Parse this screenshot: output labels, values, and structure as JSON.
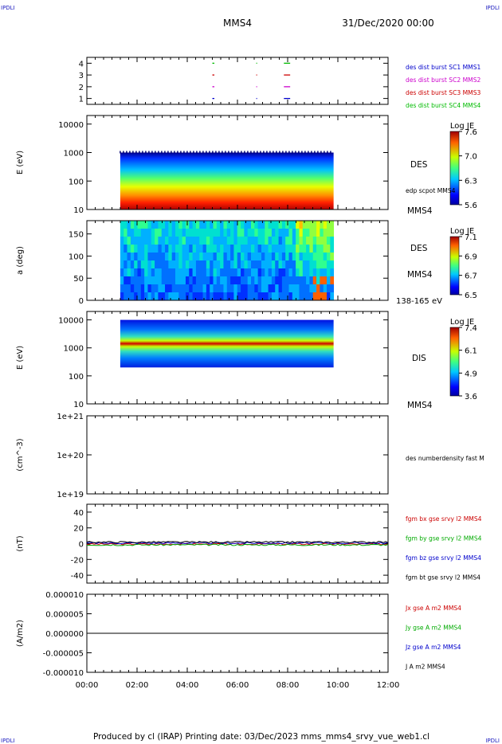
{
  "corner_label": "IPDLI",
  "header": {
    "title": "MMS4",
    "date": "31/Dec/2020 00:00"
  },
  "footer": {
    "text": "Produced by cl (IRAP)   Printing date: 03/Dec/2023   mms_mms4_srvy_vue_web1.cl"
  },
  "x_axis": {
    "ticks": [
      "00:00",
      "02:00",
      "04:00",
      "06:00",
      "08:00",
      "10:00",
      "12:00"
    ]
  },
  "colors": {
    "burst_sc1": "#0000cc",
    "burst_sc2": "#cc00cc",
    "burst_sc3": "#cc0000",
    "burst_sc4": "#00bb00",
    "bx": "#cc0000",
    "by": "#00aa00",
    "bz": "#0000cc",
    "bt": "#000000"
  },
  "chart_data": [
    {
      "type": "scatter",
      "panel": "burst",
      "yticks": [
        "4",
        "3",
        "2",
        "1"
      ],
      "ylim": [
        0.5,
        4.5
      ],
      "series": [
        {
          "name": "des dist burst SC1 MMS1",
          "y": 1
        },
        {
          "name": "des dist burst SC2 MMS2",
          "y": 2
        },
        {
          "name": "des dist burst SC3 MMS3",
          "y": 3
        },
        {
          "name": "des dist burst SC4 MMS4",
          "y": 4
        }
      ],
      "intervals_hours": [
        [
          5.0,
          5.08
        ],
        [
          6.75,
          6.78
        ],
        [
          7.85,
          8.1
        ]
      ]
    },
    {
      "type": "heatmap",
      "panel": "des_energy",
      "ylabel": "E (eV)",
      "yticks": [
        "10000",
        "1000",
        "100",
        "10"
      ],
      "ylim": [
        10,
        20000
      ],
      "yscale": "log",
      "data_hours": [
        1.33,
        9.83
      ],
      "colorbar": {
        "title": "Log JE",
        "ticks": [
          "7.6",
          "7.0",
          "6.3",
          "5.6"
        ],
        "range": [
          5.6,
          7.6
        ]
      },
      "labels": [
        "DES",
        "edp scpot MMS4",
        "MMS4"
      ]
    },
    {
      "type": "heatmap",
      "panel": "des_pitch",
      "ylabel": "a (deg)",
      "yticks": [
        "150",
        "100",
        "50",
        "0"
      ],
      "ylim": [
        0,
        180
      ],
      "data_hours": [
        1.33,
        9.83
      ],
      "colorbar": {
        "title": "Log JE",
        "ticks": [
          "7.1",
          "6.9",
          "6.7",
          "6.5"
        ],
        "range": [
          6.5,
          7.1
        ]
      },
      "labels": [
        "DES",
        "MMS4",
        "138-165 eV"
      ]
    },
    {
      "type": "heatmap",
      "panel": "dis_energy",
      "ylabel": "E (eV)",
      "yticks": [
        "10000",
        "1000",
        "100",
        "10"
      ],
      "ylim": [
        10,
        20000
      ],
      "yscale": "log",
      "data_hours": [
        1.33,
        9.83
      ],
      "colorbar": {
        "title": "Log JE",
        "ticks": [
          "7.4",
          "6.1",
          "4.9",
          "3.6"
        ],
        "range": [
          3.6,
          7.4
        ]
      },
      "labels": [
        "DIS",
        "MMS4"
      ]
    },
    {
      "type": "line",
      "panel": "density",
      "ylabel": "(cm^-3)",
      "yticks": [
        "1e+21",
        "1e+20",
        "1e+19"
      ],
      "ylim": [
        1e+19,
        1e+21
      ],
      "yscale": "log",
      "series": [
        {
          "name": "des numberdensity fast M"
        }
      ]
    },
    {
      "type": "line",
      "panel": "fgm",
      "ylabel": "(nT)",
      "yticks": [
        "40",
        "20",
        "0",
        "-20",
        "-40"
      ],
      "ylim": [
        -50,
        50
      ],
      "series": [
        {
          "name": "fgm bx gse srvy l2 MMS4",
          "level": -0.5
        },
        {
          "name": "fgm by gse srvy l2 MMS4",
          "level": -1.5
        },
        {
          "name": "fgm bz gse srvy l2 MMS4",
          "level": 0.8
        },
        {
          "name": "fgm bt gse srvy l2 MMS4",
          "level": 2.0
        }
      ]
    },
    {
      "type": "line",
      "panel": "current",
      "ylabel": "(A/m2)",
      "yticks": [
        "0.000010",
        "0.000005",
        "0.000000",
        "-0.000005",
        "-0.000010"
      ],
      "ylim": [
        -1e-05,
        1e-05
      ],
      "series": [
        {
          "name": "Jx gse A m2 MMS4"
        },
        {
          "name": "Jy gse A m2 MMS4"
        },
        {
          "name": "Jz gse A m2 MMS4"
        },
        {
          "name": "J A m2 MMS4"
        }
      ]
    }
  ]
}
